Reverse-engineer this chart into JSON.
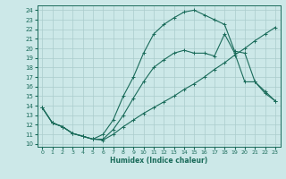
{
  "xlabel": "Humidex (Indice chaleur)",
  "xlim": [
    -0.5,
    23.5
  ],
  "ylim": [
    9.7,
    24.5
  ],
  "xticks": [
    0,
    1,
    2,
    3,
    4,
    5,
    6,
    7,
    8,
    9,
    10,
    11,
    12,
    13,
    14,
    15,
    16,
    17,
    18,
    19,
    20,
    21,
    22,
    23
  ],
  "yticks": [
    10,
    11,
    12,
    13,
    14,
    15,
    16,
    17,
    18,
    19,
    20,
    21,
    22,
    23,
    24
  ],
  "bg_color": "#cce8e8",
  "grid_color": "#aacccc",
  "line_color": "#1a6b5a",
  "curve_diag_x": [
    0,
    1,
    2,
    3,
    4,
    5,
    6,
    7,
    8,
    9,
    10,
    11,
    12,
    13,
    14,
    15,
    16,
    17,
    18,
    19,
    20,
    21,
    22,
    23
  ],
  "curve_diag_y": [
    13.8,
    12.2,
    11.8,
    11.1,
    10.8,
    10.5,
    10.4,
    11.0,
    11.8,
    12.5,
    13.2,
    13.8,
    14.4,
    15.0,
    15.7,
    16.3,
    17.0,
    17.8,
    18.5,
    19.3,
    20.0,
    20.8,
    21.5,
    22.2
  ],
  "curve_mid_x": [
    0,
    1,
    2,
    3,
    4,
    5,
    6,
    7,
    8,
    9,
    10,
    11,
    12,
    13,
    14,
    15,
    16,
    17,
    18,
    19,
    20,
    21,
    22,
    23
  ],
  "curve_mid_y": [
    13.8,
    12.2,
    11.8,
    11.1,
    10.8,
    10.5,
    10.5,
    11.5,
    13.0,
    14.8,
    16.5,
    18.0,
    18.8,
    19.5,
    19.8,
    19.5,
    19.5,
    19.2,
    21.5,
    19.5,
    16.5,
    16.5,
    15.5,
    14.5
  ],
  "curve_top_x": [
    0,
    1,
    2,
    3,
    4,
    5,
    6,
    7,
    8,
    9,
    10,
    11,
    12,
    13,
    14,
    15,
    16,
    17,
    18,
    19,
    20,
    21,
    22,
    23
  ],
  "curve_top_y": [
    13.8,
    12.2,
    11.8,
    11.1,
    10.8,
    10.5,
    11.0,
    12.5,
    15.0,
    17.0,
    19.5,
    21.5,
    22.5,
    23.2,
    23.8,
    24.0,
    23.5,
    23.0,
    22.5,
    19.7,
    19.5,
    16.5,
    15.3,
    14.5
  ]
}
